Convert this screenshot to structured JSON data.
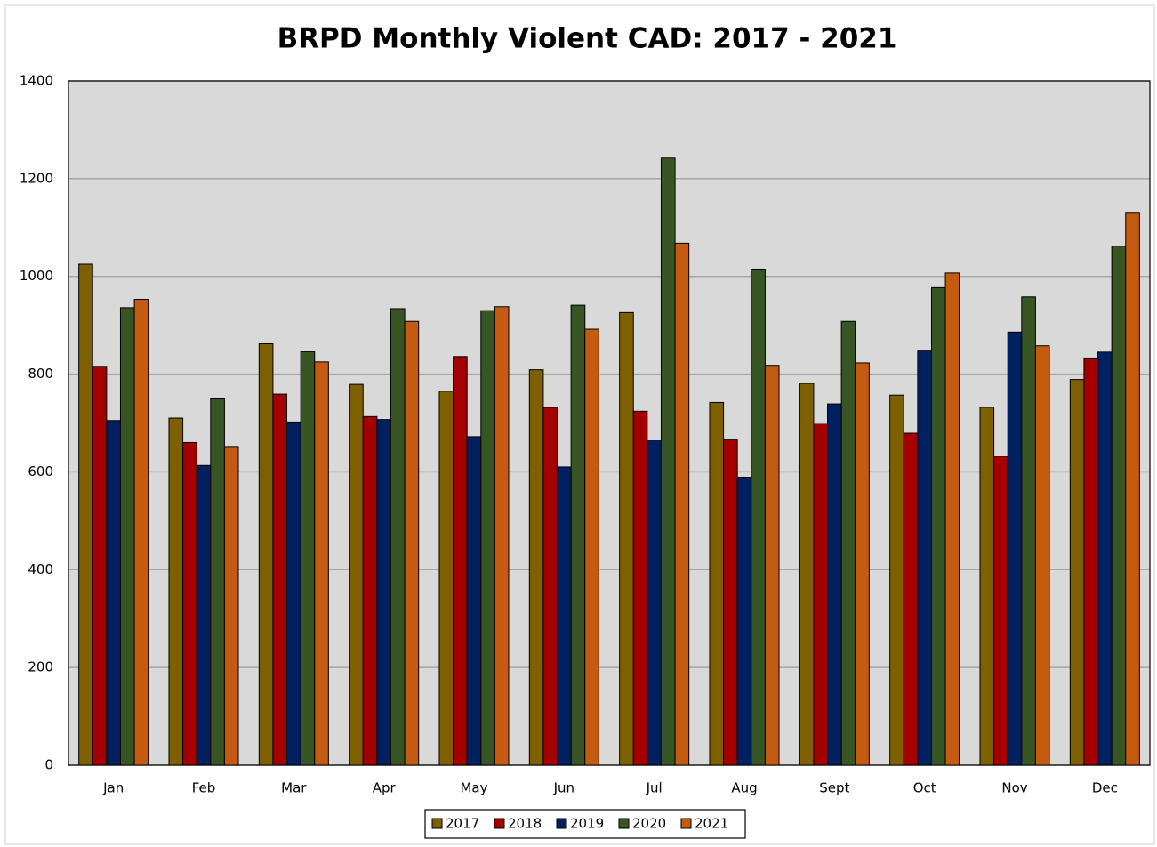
{
  "chart_data": {
    "type": "bar",
    "title": "BRPD Monthly Violent CAD: 2017 - 2021",
    "categories": [
      "Jan",
      "Feb",
      "Mar",
      "Apr",
      "May",
      "Jun",
      "Jul",
      "Aug",
      "Sept",
      "Oct",
      "Nov",
      "Dec"
    ],
    "series": [
      {
        "name": "2017",
        "color": "#7f6000",
        "values": [
          1025,
          710,
          862,
          779,
          765,
          809,
          926,
          742,
          781,
          757,
          732,
          789
        ]
      },
      {
        "name": "2018",
        "color": "#a50000",
        "values": [
          816,
          660,
          759,
          713,
          836,
          732,
          724,
          667,
          699,
          679,
          632,
          833
        ]
      },
      {
        "name": "2019",
        "color": "#002060",
        "values": [
          705,
          613,
          702,
          707,
          672,
          610,
          665,
          589,
          739,
          849,
          886,
          845
        ]
      },
      {
        "name": "2020",
        "color": "#375623",
        "values": [
          936,
          751,
          846,
          934,
          930,
          941,
          1242,
          1015,
          908,
          977,
          958,
          1062
        ]
      },
      {
        "name": "2021",
        "color": "#c55a11",
        "values": [
          953,
          652,
          825,
          908,
          938,
          892,
          1068,
          818,
          823,
          1007,
          858,
          1131
        ]
      }
    ],
    "ylim": [
      0,
      1400
    ],
    "yticks": [
      0,
      200,
      400,
      600,
      800,
      1000,
      1200,
      1400
    ],
    "grid": true,
    "legend": "bottom"
  }
}
